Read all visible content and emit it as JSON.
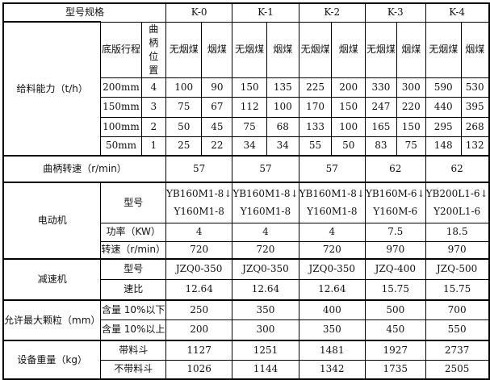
{
  "header": {
    "spec_label": "型号规格",
    "models": [
      "K-0",
      "K-1",
      "K-2",
      "K-3",
      "K-4"
    ],
    "stroke_label": "底版行程",
    "crank_position_label": "曲柄位置",
    "coal_types": [
      "无烟煤",
      "烟煤"
    ]
  },
  "capacity": {
    "label": "给料能力（t/h）",
    "rows": [
      {
        "stroke": "200mm",
        "position": "4",
        "values": [
          "100",
          "90",
          "150",
          "135",
          "225",
          "200",
          "330",
          "300",
          "590",
          "530"
        ]
      },
      {
        "stroke": "150mm",
        "position": "3",
        "values": [
          "75",
          "67",
          "112",
          "100",
          "170",
          "150",
          "247",
          "220",
          "440",
          "395"
        ]
      },
      {
        "stroke": "100mm",
        "position": "2",
        "values": [
          "50",
          "45",
          "75",
          "68",
          "133",
          "100",
          "165",
          "150",
          "295",
          "268"
        ]
      },
      {
        "stroke": "50mm",
        "position": "1",
        "values": [
          "25",
          "22",
          "34",
          "34",
          "55",
          "50",
          "83",
          "75",
          "148",
          "132"
        ]
      }
    ]
  },
  "crank_speed": {
    "label": "曲柄转速（r/min）",
    "values": [
      "57",
      "57",
      "57",
      "62",
      "62"
    ]
  },
  "motor": {
    "label": "电动机",
    "rows": [
      {
        "label": "型号",
        "values": [
          "YB160M1-8↓\nY160M1-8",
          "YB160M1-8↓\nY160M1-8",
          "YB160M1-8↓\nY160M1-8",
          "YB160M-6↓\nY160M-6",
          "YB200L1-6↓\nY200L1-6"
        ]
      },
      {
        "label": "功率（KW）",
        "values": [
          "4",
          "4",
          "4",
          "7.5",
          "18.5"
        ]
      },
      {
        "label": "转速（r/min）",
        "values": [
          "720",
          "720",
          "720",
          "970",
          "970"
        ]
      }
    ]
  },
  "reducer": {
    "label": "减速机",
    "rows": [
      {
        "label": "型号",
        "values": [
          "JZQ0-350",
          "JZQ0-350",
          "JZQ0-350",
          "JZQ-400",
          "JZQ-500"
        ]
      },
      {
        "label": "速比",
        "values": [
          "12.64",
          "12.64",
          "12.64",
          "15.75",
          "15.75"
        ]
      }
    ]
  },
  "max_particle": {
    "label": "允许最大颗粒（mm）",
    "rows": [
      {
        "label": "含量 10%以下",
        "values": [
          "250",
          "350",
          "400",
          "500",
          "700"
        ]
      },
      {
        "label": "含量 10%以上",
        "values": [
          "200",
          "300",
          "350",
          "450",
          "550"
        ]
      }
    ]
  },
  "weight": {
    "label": "设备重量（kg）",
    "rows": [
      {
        "label": "带料斗",
        "values": [
          "1127",
          "1251",
          "1481",
          "1927",
          "2737"
        ]
      },
      {
        "label": "不带料斗",
        "values": [
          "1026",
          "1144",
          "1342",
          "1735",
          "2505"
        ]
      }
    ]
  }
}
